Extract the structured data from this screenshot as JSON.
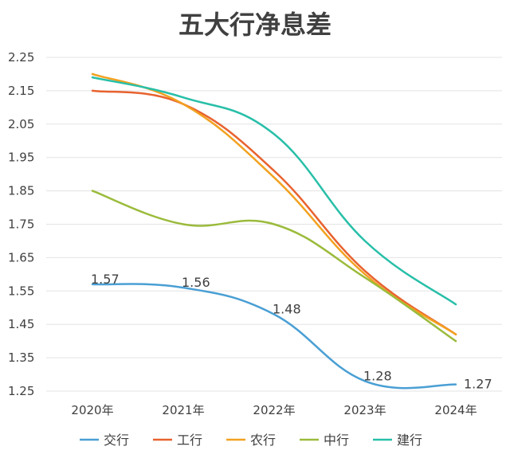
{
  "chart_data": {
    "type": "line",
    "title": "五大行净息差",
    "categories": [
      "2020年",
      "2021年",
      "2022年",
      "2023年",
      "2024年"
    ],
    "ylim": [
      1.25,
      2.25
    ],
    "yticks": [
      "1.25",
      "1.35",
      "1.45",
      "1.55",
      "1.65",
      "1.75",
      "1.85",
      "1.95",
      "2.05",
      "2.15",
      "2.25"
    ],
    "grid": true,
    "legend_position": "bottom",
    "series": [
      {
        "name": "交行",
        "color": "#4a9fd4",
        "values": [
          1.57,
          1.56,
          1.48,
          1.28,
          1.27
        ],
        "labels": [
          "1.57",
          "1.56",
          "1.48",
          "1.28",
          "1.27"
        ]
      },
      {
        "name": "工行",
        "color": "#e8622f",
        "values": [
          2.15,
          2.11,
          1.91,
          1.61,
          1.42
        ]
      },
      {
        "name": "农行",
        "color": "#f2a11f",
        "values": [
          2.2,
          2.11,
          1.89,
          1.6,
          1.42
        ]
      },
      {
        "name": "中行",
        "color": "#9bbb3b",
        "values": [
          1.85,
          1.75,
          1.75,
          1.59,
          1.4
        ]
      },
      {
        "name": "建行",
        "color": "#28bfa8",
        "values": [
          2.19,
          2.13,
          2.02,
          1.7,
          1.51
        ]
      }
    ]
  }
}
